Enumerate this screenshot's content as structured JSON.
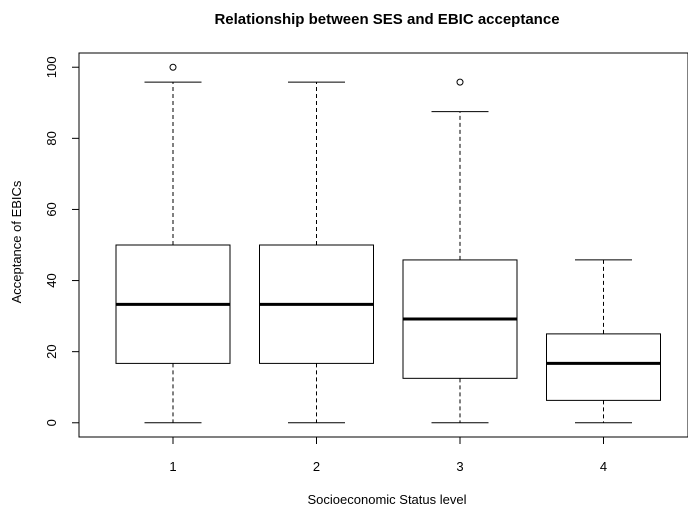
{
  "chart_data": {
    "type": "boxplot",
    "title": "Relationship between SES and EBIC acceptance",
    "xlabel": "Socioeconomic Status level",
    "ylabel": "Acceptance of EBICs",
    "categories": [
      "1",
      "2",
      "3",
      "4"
    ],
    "yticks": [
      0,
      20,
      40,
      60,
      80,
      100
    ],
    "ylim": [
      -4,
      104
    ],
    "boxes": [
      {
        "category": "1",
        "whisker_low": 0,
        "q1": 16.7,
        "median": 33.3,
        "q3": 50,
        "whisker_high": 95.8,
        "outliers": [
          100
        ]
      },
      {
        "category": "2",
        "whisker_low": 0,
        "q1": 16.7,
        "median": 33.3,
        "q3": 50,
        "whisker_high": 95.8,
        "outliers": []
      },
      {
        "category": "3",
        "whisker_low": 0,
        "q1": 12.5,
        "median": 29.2,
        "q3": 45.8,
        "whisker_high": 87.5,
        "outliers": [
          95.8
        ]
      },
      {
        "category": "4",
        "whisker_low": 0,
        "q1": 6.3,
        "median": 16.7,
        "q3": 25,
        "whisker_high": 45.8,
        "outliers": []
      }
    ],
    "grid": false,
    "legend": "none"
  }
}
